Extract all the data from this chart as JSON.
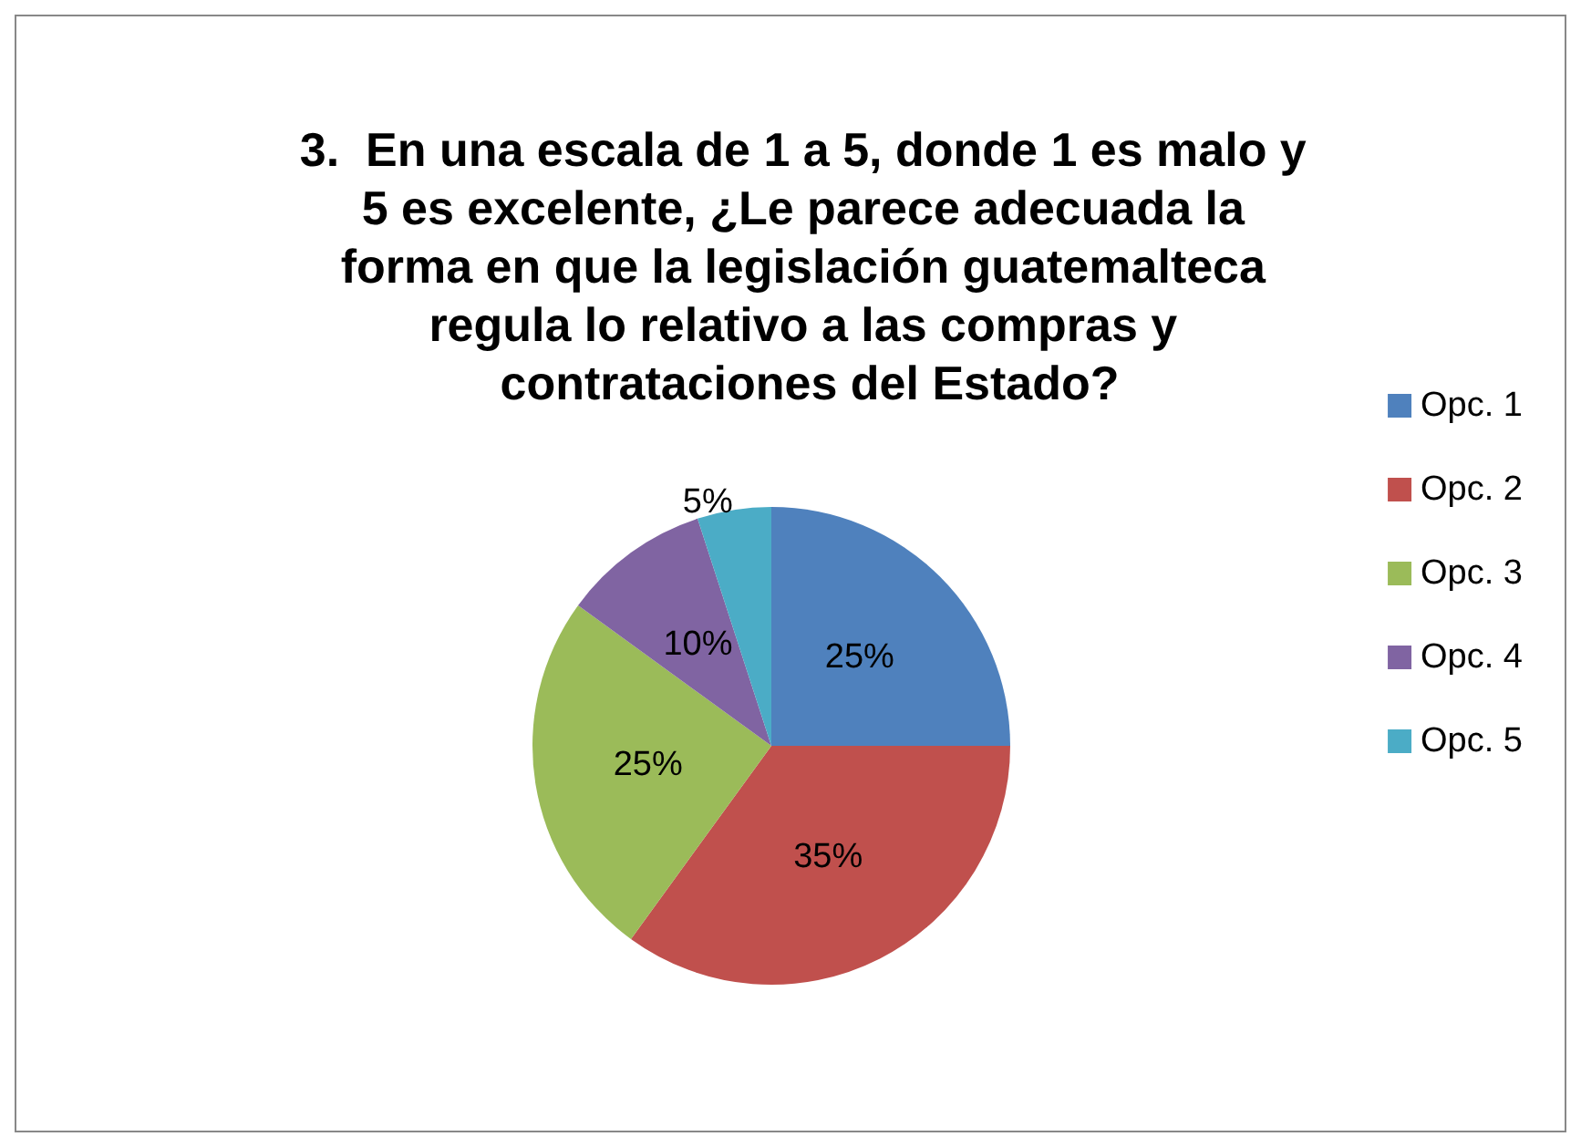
{
  "chart_data": {
    "type": "pie",
    "title": "3.  En una escala de 1 a 5, donde 1 es malo y 5 es excelente, ¿Le parece adecuada la forma en que la legislación guatemalteca regula lo relativo a las compras y contrataciones del Estado?",
    "categories": [
      "Opc. 1",
      "Opc. 2",
      "Opc. 3",
      "Opc. 4",
      "Opc. 5"
    ],
    "values": [
      25,
      35,
      25,
      10,
      5
    ],
    "colors": [
      "#4f81bd",
      "#c0504d",
      "#9bbb59",
      "#8064a2",
      "#4bacc6"
    ],
    "value_labels": [
      "25%",
      "35%",
      "25%",
      "10%",
      "5%"
    ],
    "legend": "right"
  }
}
